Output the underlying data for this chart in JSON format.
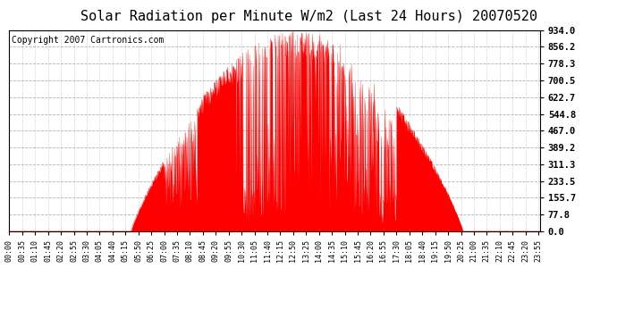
{
  "title": "Solar Radiation per Minute W/m2 (Last 24 Hours) 20070520",
  "copyright": "Copyright 2007 Cartronics.com",
  "y_ticks": [
    0.0,
    77.8,
    155.7,
    233.5,
    311.3,
    389.2,
    467.0,
    544.8,
    622.7,
    700.5,
    778.3,
    856.2,
    934.0
  ],
  "ymax": 934.0,
  "ymin": 0.0,
  "fill_color": "#FF0000",
  "line_color": "#FF0000",
  "background_color": "#FFFFFF",
  "grid_color": "#BBBBBB",
  "title_fontsize": 11,
  "copyright_fontsize": 7,
  "x_tick_times": [
    "00:00",
    "00:35",
    "01:10",
    "01:45",
    "02:20",
    "02:55",
    "03:30",
    "04:05",
    "04:40",
    "05:15",
    "05:50",
    "06:25",
    "07:00",
    "07:35",
    "08:10",
    "08:45",
    "09:20",
    "09:55",
    "10:30",
    "11:05",
    "11:40",
    "12:15",
    "12:50",
    "13:25",
    "14:00",
    "14:35",
    "15:10",
    "15:45",
    "16:20",
    "16:55",
    "17:30",
    "18:05",
    "18:40",
    "19:15",
    "19:50",
    "20:25",
    "21:00",
    "21:35",
    "22:10",
    "22:45",
    "23:20",
    "23:55"
  ]
}
